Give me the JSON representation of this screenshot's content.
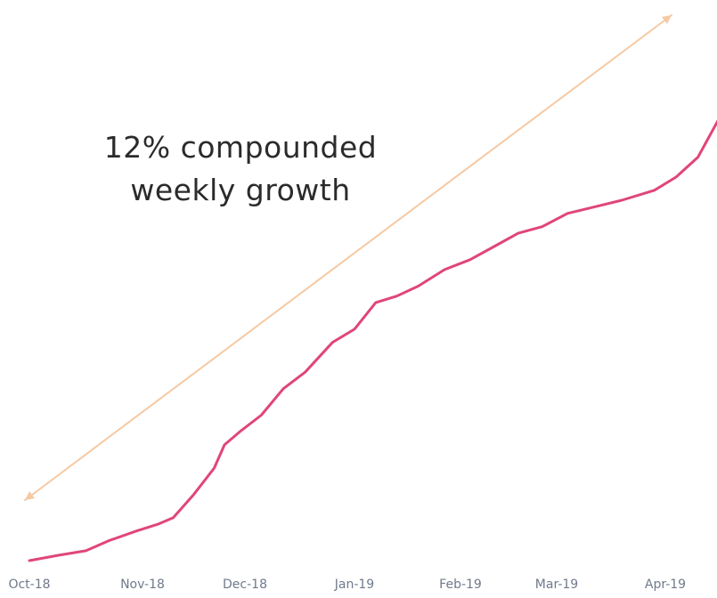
{
  "chart_data": {
    "type": "line",
    "title": "",
    "xlabel": "",
    "ylabel": "",
    "grid": false,
    "annotation": {
      "lines": [
        "12% compounded",
        "weekly growth"
      ],
      "arrow_color": "#f5c9a3"
    },
    "x_ticks": [
      "Oct-18",
      "Nov-18",
      "Dec-18",
      "Jan-19",
      "Feb-19",
      "Mar-19",
      "Apr-19"
    ],
    "series": [
      {
        "color": "#e0457b",
        "x": [
          0.0,
          0.25,
          0.5,
          0.7,
          0.95,
          1.15,
          1.3,
          1.5,
          1.7,
          1.8,
          1.95,
          2.15,
          2.35,
          2.55,
          2.8,
          3.0,
          3.2,
          3.4,
          3.6,
          3.85,
          4.1,
          4.35,
          4.6,
          4.85,
          5.1,
          5.35,
          5.6,
          5.9,
          6.1,
          6.3,
          6.5,
          6.7,
          6.85
        ],
        "y": [
          0,
          0.08,
          0.15,
          0.3,
          0.45,
          0.55,
          0.65,
          1.0,
          1.4,
          1.75,
          1.95,
          2.2,
          2.6,
          2.85,
          3.3,
          3.5,
          3.9,
          4.0,
          4.15,
          4.4,
          4.55,
          4.75,
          4.95,
          5.05,
          5.25,
          5.35,
          5.45,
          5.6,
          5.8,
          6.1,
          6.7,
          7.5,
          8.1
        ]
      }
    ]
  }
}
